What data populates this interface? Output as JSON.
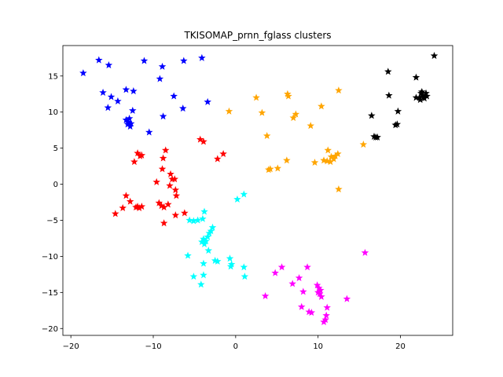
{
  "chart_data": {
    "type": "scatter",
    "title": "TKISOMAP_prnn_fglass clusters",
    "xlabel": "",
    "ylabel": "",
    "xlim": [
      -20.97,
      26.34
    ],
    "ylim": [
      -20.95,
      19.22
    ],
    "xticks": [
      -20,
      -10,
      0,
      10,
      20
    ],
    "yticks": [
      -20,
      -15,
      -10,
      -5,
      0,
      5,
      10,
      15
    ],
    "marker": "star",
    "grid": false,
    "legend": "none",
    "series": [
      {
        "color": "#0000ff",
        "points": [
          [
            -18.5,
            15.4
          ],
          [
            -16.6,
            17.2
          ],
          [
            -15.4,
            16.5
          ],
          [
            -16.1,
            12.7
          ],
          [
            -15.1,
            12.1
          ],
          [
            -14.3,
            11.5
          ],
          [
            -15.5,
            10.6
          ],
          [
            -13.3,
            13.1
          ],
          [
            -12.4,
            12.9
          ],
          [
            -11.1,
            17.1
          ],
          [
            -9.2,
            14.6
          ],
          [
            -8.9,
            16.3
          ],
          [
            -6.3,
            17.1
          ],
          [
            -4.1,
            17.5
          ],
          [
            -7.5,
            12.2
          ],
          [
            -3.4,
            11.4
          ],
          [
            -6.4,
            10.5
          ],
          [
            -8.8,
            9.4
          ],
          [
            -12.5,
            10.2
          ],
          [
            -10.5,
            7.2
          ],
          [
            -13.3,
            8.9
          ],
          [
            -13.0,
            8.6
          ],
          [
            -12.8,
            8.0
          ],
          [
            -13.1,
            8.3
          ],
          [
            -12.9,
            9.1
          ],
          [
            -13.0,
            8.5
          ],
          [
            -12.7,
            8.4
          ]
        ]
      },
      {
        "color": "#ff0000",
        "points": [
          [
            -11.9,
            4.3
          ],
          [
            -11.6,
            3.9
          ],
          [
            -11.4,
            4.0
          ],
          [
            -12.3,
            3.1
          ],
          [
            -8.5,
            4.7
          ],
          [
            -8.8,
            3.6
          ],
          [
            -8.9,
            2.1
          ],
          [
            -7.9,
            1.4
          ],
          [
            -7.7,
            0.7
          ],
          [
            -7.4,
            0.7
          ],
          [
            -9.6,
            0.3
          ],
          [
            -8.0,
            -0.2
          ],
          [
            -7.3,
            -0.8
          ],
          [
            -7.2,
            -1.6
          ],
          [
            -8.2,
            -2.8
          ],
          [
            -9.3,
            -2.6
          ],
          [
            -9.0,
            -3.0
          ],
          [
            -8.7,
            -3.2
          ],
          [
            -13.3,
            -1.6
          ],
          [
            -12.8,
            -2.4
          ],
          [
            -13.7,
            -3.3
          ],
          [
            -14.6,
            -4.1
          ],
          [
            -12.1,
            -3.2
          ],
          [
            -11.7,
            -3.3
          ],
          [
            -11.9,
            -3.1
          ],
          [
            -11.4,
            -3.1
          ],
          [
            -8.7,
            -5.4
          ],
          [
            -7.3,
            -4.3
          ],
          [
            -6.2,
            -4.0
          ],
          [
            -4.3,
            6.2
          ],
          [
            -3.9,
            5.9
          ],
          [
            -2.2,
            3.5
          ],
          [
            -1.5,
            4.2
          ]
        ]
      },
      {
        "color": "#00ffff",
        "points": [
          [
            1.0,
            -1.4
          ],
          [
            0.2,
            -2.1
          ],
          [
            -3.8,
            -3.8
          ],
          [
            -5.1,
            -5.1
          ],
          [
            -5.6,
            -5.0
          ],
          [
            -4.6,
            -5.0
          ],
          [
            -4.0,
            -4.8
          ],
          [
            -2.8,
            -6.0
          ],
          [
            -3.2,
            -6.8
          ],
          [
            -3.0,
            -6.5
          ],
          [
            -3.4,
            -7.3
          ],
          [
            -3.6,
            -7.9
          ],
          [
            -4.1,
            -8.0
          ],
          [
            -3.8,
            -8.3
          ],
          [
            -3.9,
            -7.6
          ],
          [
            -3.3,
            -9.2
          ],
          [
            -5.8,
            -9.9
          ],
          [
            -3.9,
            -11.0
          ],
          [
            -2.5,
            -10.6
          ],
          [
            -2.2,
            -10.7
          ],
          [
            -5.1,
            -12.8
          ],
          [
            -3.9,
            -12.6
          ],
          [
            -4.2,
            -13.9
          ],
          [
            -0.7,
            -10.3
          ],
          [
            -0.5,
            -11.1
          ],
          [
            -0.6,
            -11.4
          ],
          [
            1.0,
            -11.5
          ],
          [
            1.1,
            -12.8
          ]
        ]
      },
      {
        "color": "#ff00ff",
        "points": [
          [
            15.7,
            -9.5
          ],
          [
            5.6,
            -11.5
          ],
          [
            4.8,
            -12.3
          ],
          [
            8.7,
            -11.5
          ],
          [
            7.7,
            -13.0
          ],
          [
            6.9,
            -13.8
          ],
          [
            3.6,
            -15.5
          ],
          [
            8.2,
            -14.9
          ],
          [
            9.9,
            -14.0
          ],
          [
            10.1,
            -14.4
          ],
          [
            10.2,
            -15.2
          ],
          [
            10.0,
            -15.0
          ],
          [
            10.4,
            -15.6
          ],
          [
            10.3,
            -14.7
          ],
          [
            13.5,
            -15.9
          ],
          [
            8.0,
            -17.0
          ],
          [
            9.2,
            -17.8
          ],
          [
            8.9,
            -17.7
          ],
          [
            11.1,
            -17.1
          ],
          [
            11.0,
            -18.2
          ],
          [
            10.9,
            -18.8
          ],
          [
            10.7,
            -19.1
          ]
        ]
      },
      {
        "color": "#ffa500",
        "points": [
          [
            -0.8,
            10.1
          ],
          [
            2.5,
            12.0
          ],
          [
            3.2,
            9.9
          ],
          [
            6.3,
            12.5
          ],
          [
            6.4,
            12.2
          ],
          [
            7.0,
            9.2
          ],
          [
            7.3,
            9.7
          ],
          [
            10.4,
            10.8
          ],
          [
            12.5,
            13.0
          ],
          [
            9.1,
            8.1
          ],
          [
            3.8,
            6.7
          ],
          [
            4.2,
            2.1
          ],
          [
            4.0,
            2.0
          ],
          [
            5.1,
            2.2
          ],
          [
            6.2,
            3.3
          ],
          [
            9.6,
            3.0
          ],
          [
            10.7,
            3.3
          ],
          [
            11.1,
            3.2
          ],
          [
            11.2,
            4.7
          ],
          [
            11.6,
            3.8
          ],
          [
            11.9,
            3.5
          ],
          [
            12.1,
            3.9
          ],
          [
            12.4,
            4.2
          ],
          [
            11.5,
            3.1
          ],
          [
            15.5,
            5.5
          ],
          [
            12.5,
            -0.7
          ]
        ]
      },
      {
        "color": "#000000",
        "points": [
          [
            24.1,
            17.8
          ],
          [
            18.5,
            15.6
          ],
          [
            21.9,
            14.8
          ],
          [
            18.6,
            12.3
          ],
          [
            16.5,
            9.5
          ],
          [
            17.0,
            6.5
          ],
          [
            16.8,
            6.6
          ],
          [
            17.2,
            6.5
          ],
          [
            19.7,
            10.1
          ],
          [
            19.6,
            8.3
          ],
          [
            19.4,
            8.2
          ],
          [
            21.9,
            12.0
          ],
          [
            22.5,
            12.6
          ],
          [
            22.8,
            12.1
          ],
          [
            23.1,
            12.6
          ],
          [
            22.4,
            11.7
          ],
          [
            22.7,
            12.3
          ],
          [
            22.3,
            12.0
          ],
          [
            22.9,
            11.9
          ],
          [
            22.6,
            12.8
          ],
          [
            23.2,
            12.2
          ]
        ]
      }
    ]
  }
}
